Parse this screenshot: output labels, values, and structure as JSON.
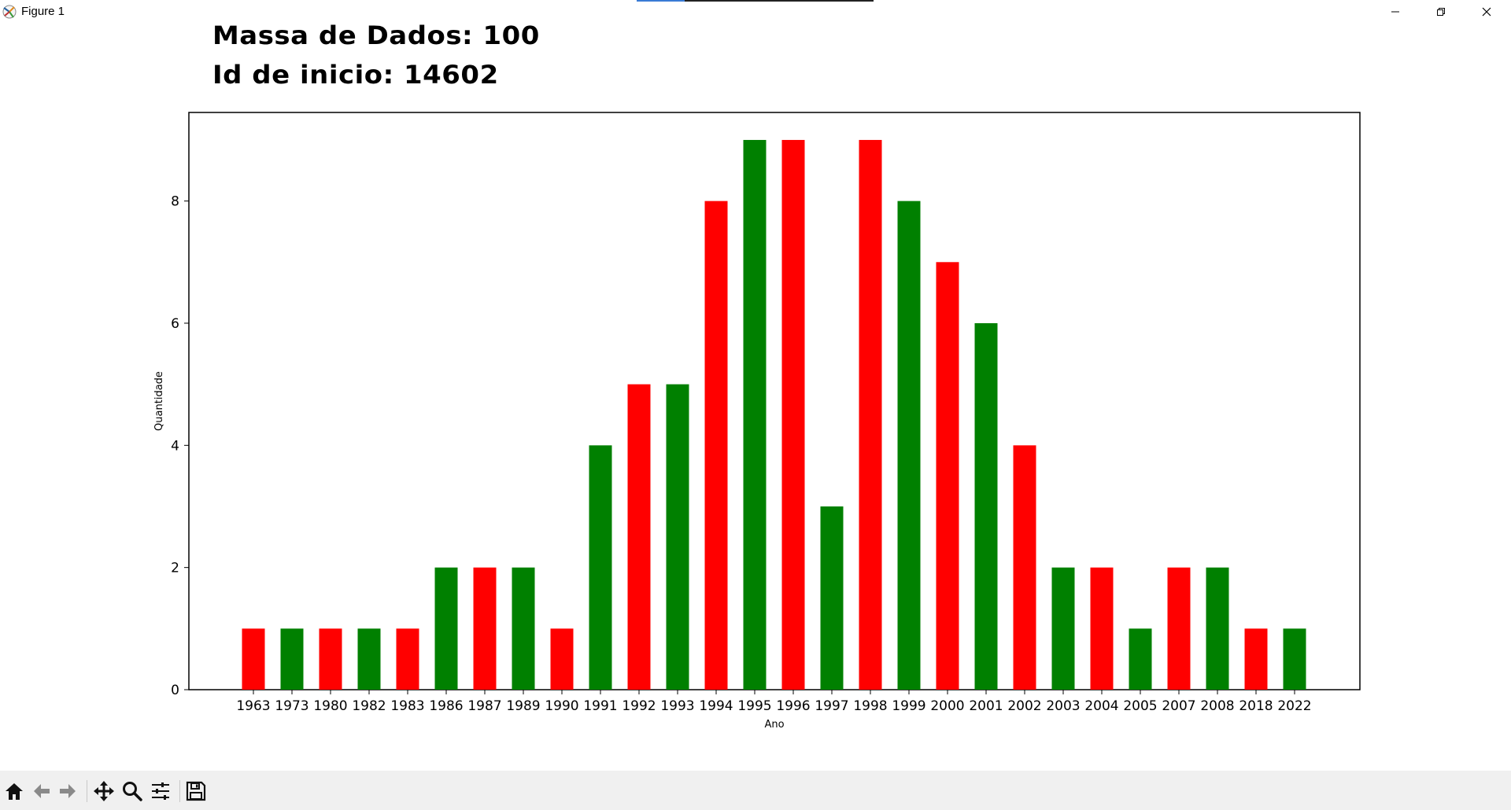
{
  "window": {
    "title": "Figure 1",
    "controls": [
      "minimize-icon",
      "restore-icon",
      "close-icon"
    ]
  },
  "heading": {
    "line1": "Massa de Dados: 100",
    "line2": "Id de inicio: 14602"
  },
  "chart_data": {
    "type": "bar",
    "xlabel": "Ano",
    "ylabel": "Quantidade",
    "ylim": [
      0,
      9.45
    ],
    "yticks": [
      0,
      2,
      4,
      6,
      8
    ],
    "categories": [
      "1963",
      "1973",
      "1980",
      "1982",
      "1983",
      "1986",
      "1987",
      "1989",
      "1990",
      "1991",
      "1992",
      "1993",
      "1994",
      "1995",
      "1996",
      "1997",
      "1998",
      "1999",
      "2000",
      "2001",
      "2002",
      "2003",
      "2004",
      "2005",
      "2007",
      "2008",
      "2018",
      "2022"
    ],
    "values": [
      1,
      1,
      1,
      1,
      1,
      2,
      2,
      2,
      1,
      4,
      5,
      5,
      8,
      9,
      9,
      3,
      9,
      8,
      7,
      6,
      4,
      2,
      2,
      1,
      2,
      2,
      1,
      1
    ],
    "colors": [
      "#ff0000",
      "#008000"
    ],
    "color_pattern": "alternating red, green",
    "grid": false
  },
  "toolbar": {
    "items": [
      "home-icon",
      "back-icon",
      "forward-icon",
      "pan-icon",
      "zoom-icon",
      "configure-subplots-icon",
      "save-icon"
    ]
  }
}
